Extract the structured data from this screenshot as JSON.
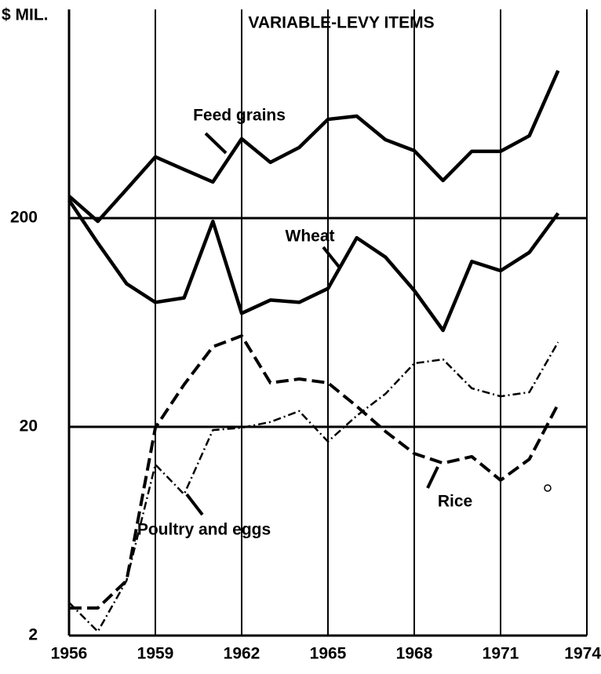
{
  "chart_data": {
    "type": "line",
    "title": "VARIABLE-LEVY ITEMS",
    "y_label": "$ MIL.",
    "x": [
      1956,
      1957,
      1958,
      1959,
      1960,
      1961,
      1962,
      1963,
      1964,
      1965,
      1966,
      1967,
      1968,
      1969,
      1970,
      1971,
      1972,
      1973
    ],
    "series": [
      {
        "name": "Feed grains",
        "color": "#000000",
        "style": "solid",
        "values": [
          255,
          193,
          275,
          393,
          342,
          298,
          480,
          370,
          436,
          595,
          616,
          475,
          421,
          303,
          418,
          418,
          496,
          1018
        ]
      },
      {
        "name": "Wheat",
        "color": "#000000",
        "style": "solid",
        "values": [
          244,
          152,
          97,
          79,
          83,
          193,
          70,
          81,
          79,
          92,
          161,
          130,
          90,
          58,
          124,
          112,
          137,
          211
        ]
      },
      {
        "name": "Poultry and eggs",
        "color": "#000000",
        "style": "dashed",
        "values": [
          2.71,
          2.71,
          3.67,
          19.8,
          31.9,
          48.4,
          54.6,
          32.5,
          33.9,
          32.5,
          25.1,
          19.0,
          14.9,
          13.4,
          14.4,
          11.1,
          14.0,
          25.7
        ]
      },
      {
        "name": "Rice",
        "color": "#000000",
        "style": "dashdot",
        "values": [
          2.88,
          2.09,
          3.67,
          13.2,
          9.5,
          19.3,
          19.8,
          21.1,
          23.8,
          17.0,
          22.6,
          28.8,
          40.3,
          42.1,
          30.6,
          28.0,
          29.3,
          50.9
        ]
      }
    ],
    "xlim": [
      1956,
      1974
    ],
    "xticks": [
      1956,
      1959,
      1962,
      1965,
      1968,
      1971,
      1974
    ],
    "ylim": [
      2,
      2000
    ],
    "yticks": [
      2,
      20,
      200
    ],
    "log_y": true,
    "grid": true
  }
}
